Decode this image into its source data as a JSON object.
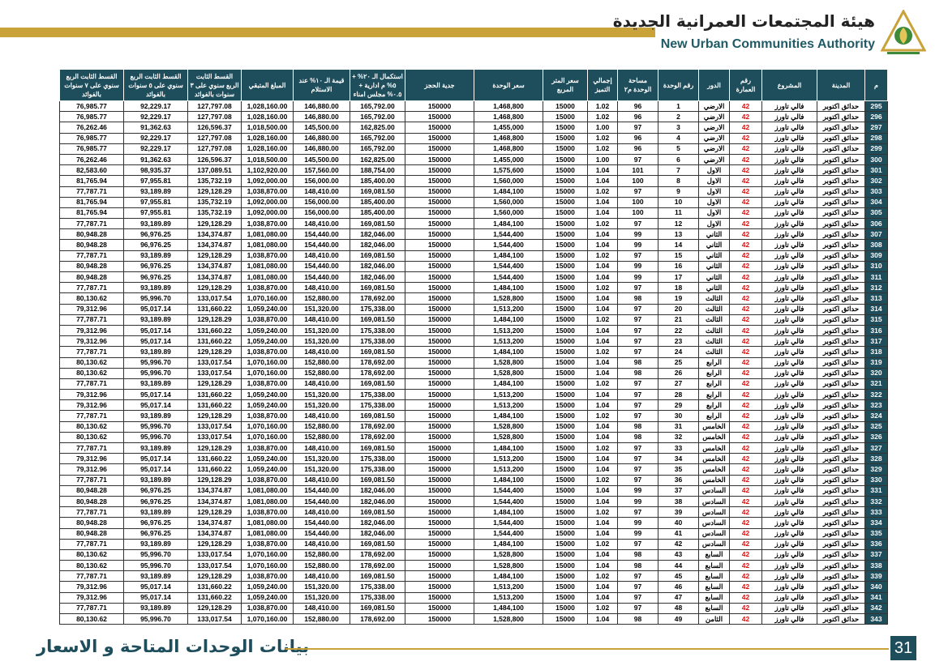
{
  "header": {
    "title_ar": "هيئة المجتمعات العمرانية الجديدة",
    "title_en": "New Urban Communities Authority"
  },
  "table": {
    "columns": [
      "م",
      "المدينة",
      "المشروع",
      "رقم العمارة",
      "الدور",
      "رقم الوحدة",
      "مساحة الوحدة م٢",
      "إجمالي التميز",
      "سعر المتر المربع",
      "سعر الوحدة",
      "جدية الحجز",
      "استكمال الـ ٢٠% + ٥% م ادارية + ٠.٥% مجلس امناء",
      "قيمة الـ ١٠% عند الاستلام",
      "المبلغ المتبقي",
      "القسط الثابت الربع سنوي على ٣ سنوات بالفوائد",
      "القسط الثابت الربع سنوي على ٥ سنوات بالفوائد",
      "القسط الثابت الربع سنوي على ٧ سنوات بالفوائد"
    ],
    "rows": [
      [
        "295",
        "حدائق اكتوبر",
        "فالي تاورز",
        "42",
        "الارضي",
        "1",
        "96",
        "1.02",
        "15000",
        "1,468,800",
        "150000",
        "165,792.00",
        "146,880.00",
        "1,028,160.00",
        "127,797.08",
        "92,229.17",
        "76,985.77"
      ],
      [
        "296",
        "حدائق اكتوبر",
        "فالي تاورز",
        "42",
        "الارضي",
        "2",
        "96",
        "1.02",
        "15000",
        "1,468,800",
        "150000",
        "165,792.00",
        "146,880.00",
        "1,028,160.00",
        "127,797.08",
        "92,229.17",
        "76,985.77"
      ],
      [
        "297",
        "حدائق اكتوبر",
        "فالي تاورز",
        "42",
        "الارضي",
        "3",
        "97",
        "1.00",
        "15000",
        "1,455,000",
        "150000",
        "162,825.00",
        "145,500.00",
        "1,018,500.00",
        "126,596.37",
        "91,362.63",
        "76,262.46"
      ],
      [
        "298",
        "حدائق اكتوبر",
        "فالي تاورز",
        "42",
        "الارضي",
        "4",
        "96",
        "1.02",
        "15000",
        "1,468,800",
        "150000",
        "165,792.00",
        "146,880.00",
        "1,028,160.00",
        "127,797.08",
        "92,229.17",
        "76,985.77"
      ],
      [
        "299",
        "حدائق اكتوبر",
        "فالي تاورز",
        "42",
        "الارضي",
        "5",
        "96",
        "1.02",
        "15000",
        "1,468,800",
        "150000",
        "165,792.00",
        "146,880.00",
        "1,028,160.00",
        "127,797.08",
        "92,229.17",
        "76,985.77"
      ],
      [
        "300",
        "حدائق اكتوبر",
        "فالي تاورز",
        "42",
        "الارضي",
        "6",
        "97",
        "1.00",
        "15000",
        "1,455,000",
        "150000",
        "162,825.00",
        "145,500.00",
        "1,018,500.00",
        "126,596.37",
        "91,362.63",
        "76,262.46"
      ],
      [
        "301",
        "حدائق اكتوبر",
        "فالي تاورز",
        "42",
        "الاول",
        "7",
        "101",
        "1.04",
        "15000",
        "1,575,600",
        "150000",
        "188,754.00",
        "157,560.00",
        "1,102,920.00",
        "137,089.51",
        "98,935.37",
        "82,583.60"
      ],
      [
        "302",
        "حدائق اكتوبر",
        "فالي تاورز",
        "42",
        "الاول",
        "8",
        "100",
        "1.04",
        "15000",
        "1,560,000",
        "150000",
        "185,400.00",
        "156,000.00",
        "1,092,000.00",
        "135,732.19",
        "97,955.81",
        "81,765.94"
      ],
      [
        "303",
        "حدائق اكتوبر",
        "فالي تاورز",
        "42",
        "الاول",
        "9",
        "97",
        "1.02",
        "15000",
        "1,484,100",
        "150000",
        "169,081.50",
        "148,410.00",
        "1,038,870.00",
        "129,128.29",
        "93,189.89",
        "77,787.71"
      ],
      [
        "304",
        "حدائق اكتوبر",
        "فالي تاورز",
        "42",
        "الاول",
        "10",
        "100",
        "1.04",
        "15000",
        "1,560,000",
        "150000",
        "185,400.00",
        "156,000.00",
        "1,092,000.00",
        "135,732.19",
        "97,955.81",
        "81,765.94"
      ],
      [
        "305",
        "حدائق اكتوبر",
        "فالي تاورز",
        "42",
        "الاول",
        "11",
        "100",
        "1.04",
        "15000",
        "1,560,000",
        "150000",
        "185,400.00",
        "156,000.00",
        "1,092,000.00",
        "135,732.19",
        "97,955.81",
        "81,765.94"
      ],
      [
        "306",
        "حدائق اكتوبر",
        "فالي تاورز",
        "42",
        "الاول",
        "12",
        "97",
        "1.02",
        "15000",
        "1,484,100",
        "150000",
        "169,081.50",
        "148,410.00",
        "1,038,870.00",
        "129,128.29",
        "93,189.89",
        "77,787.71"
      ],
      [
        "307",
        "حدائق اكتوبر",
        "فالي تاورز",
        "42",
        "الثاني",
        "13",
        "99",
        "1.04",
        "15000",
        "1,544,400",
        "150000",
        "182,046.00",
        "154,440.00",
        "1,081,080.00",
        "134,374.87",
        "96,976.25",
        "80,948.28"
      ],
      [
        "308",
        "حدائق اكتوبر",
        "فالي تاورز",
        "42",
        "الثاني",
        "14",
        "99",
        "1.04",
        "15000",
        "1,544,400",
        "150000",
        "182,046.00",
        "154,440.00",
        "1,081,080.00",
        "134,374.87",
        "96,976.25",
        "80,948.28"
      ],
      [
        "309",
        "حدائق اكتوبر",
        "فالي تاورز",
        "42",
        "الثاني",
        "15",
        "97",
        "1.02",
        "15000",
        "1,484,100",
        "150000",
        "169,081.50",
        "148,410.00",
        "1,038,870.00",
        "129,128.29",
        "93,189.89",
        "77,787.71"
      ],
      [
        "310",
        "حدائق اكتوبر",
        "فالي تاورز",
        "42",
        "الثاني",
        "16",
        "99",
        "1.04",
        "15000",
        "1,544,400",
        "150000",
        "182,046.00",
        "154,440.00",
        "1,081,080.00",
        "134,374.87",
        "96,976.25",
        "80,948.28"
      ],
      [
        "311",
        "حدائق اكتوبر",
        "فالي تاورز",
        "42",
        "الثاني",
        "17",
        "99",
        "1.04",
        "15000",
        "1,544,400",
        "150000",
        "182,046.00",
        "154,440.00",
        "1,081,080.00",
        "134,374.87",
        "96,976.25",
        "80,948.28"
      ],
      [
        "312",
        "حدائق اكتوبر",
        "فالي تاورز",
        "42",
        "الثاني",
        "18",
        "97",
        "1.02",
        "15000",
        "1,484,100",
        "150000",
        "169,081.50",
        "148,410.00",
        "1,038,870.00",
        "129,128.29",
        "93,189.89",
        "77,787.71"
      ],
      [
        "313",
        "حدائق اكتوبر",
        "فالي تاورز",
        "42",
        "الثالث",
        "19",
        "98",
        "1.04",
        "15000",
        "1,528,800",
        "150000",
        "178,692.00",
        "152,880.00",
        "1,070,160.00",
        "133,017.54",
        "95,996.70",
        "80,130.62"
      ],
      [
        "314",
        "حدائق اكتوبر",
        "فالي تاورز",
        "42",
        "الثالث",
        "20",
        "97",
        "1.04",
        "15000",
        "1,513,200",
        "150000",
        "175,338.00",
        "151,320.00",
        "1,059,240.00",
        "131,660.22",
        "95,017.14",
        "79,312.96"
      ],
      [
        "315",
        "حدائق اكتوبر",
        "فالي تاورز",
        "42",
        "الثالث",
        "21",
        "97",
        "1.02",
        "15000",
        "1,484,100",
        "150000",
        "169,081.50",
        "148,410.00",
        "1,038,870.00",
        "129,128.29",
        "93,189.89",
        "77,787.71"
      ],
      [
        "316",
        "حدائق اكتوبر",
        "فالي تاورز",
        "42",
        "الثالث",
        "22",
        "97",
        "1.04",
        "15000",
        "1,513,200",
        "150000",
        "175,338.00",
        "151,320.00",
        "1,059,240.00",
        "131,660.22",
        "95,017.14",
        "79,312.96"
      ],
      [
        "317",
        "حدائق اكتوبر",
        "فالي تاورز",
        "42",
        "الثالث",
        "23",
        "97",
        "1.04",
        "15000",
        "1,513,200",
        "150000",
        "175,338.00",
        "151,320.00",
        "1,059,240.00",
        "131,660.22",
        "95,017.14",
        "79,312.96"
      ],
      [
        "318",
        "حدائق اكتوبر",
        "فالي تاورز",
        "42",
        "الثالث",
        "24",
        "97",
        "1.02",
        "15000",
        "1,484,100",
        "150000",
        "169,081.50",
        "148,410.00",
        "1,038,870.00",
        "129,128.29",
        "93,189.89",
        "77,787.71"
      ],
      [
        "319",
        "حدائق اكتوبر",
        "فالي تاورز",
        "42",
        "الرابع",
        "25",
        "98",
        "1.04",
        "15000",
        "1,528,800",
        "150000",
        "178,692.00",
        "152,880.00",
        "1,070,160.00",
        "133,017.54",
        "95,996.70",
        "80,130.62"
      ],
      [
        "320",
        "حدائق اكتوبر",
        "فالي تاورز",
        "42",
        "الرابع",
        "26",
        "98",
        "1.04",
        "15000",
        "1,528,800",
        "150000",
        "178,692.00",
        "152,880.00",
        "1,070,160.00",
        "133,017.54",
        "95,996.70",
        "80,130.62"
      ],
      [
        "321",
        "حدائق اكتوبر",
        "فالي تاورز",
        "42",
        "الرابع",
        "27",
        "97",
        "1.02",
        "15000",
        "1,484,100",
        "150000",
        "169,081.50",
        "148,410.00",
        "1,038,870.00",
        "129,128.29",
        "93,189.89",
        "77,787.71"
      ],
      [
        "322",
        "حدائق اكتوبر",
        "فالي تاورز",
        "42",
        "الرابع",
        "28",
        "97",
        "1.04",
        "15000",
        "1,513,200",
        "150000",
        "175,338.00",
        "151,320.00",
        "1,059,240.00",
        "131,660.22",
        "95,017.14",
        "79,312.96"
      ],
      [
        "323",
        "حدائق اكتوبر",
        "فالي تاورز",
        "42",
        "الرابع",
        "29",
        "97",
        "1.04",
        "15000",
        "1,513,200",
        "150000",
        "175,338.00",
        "151,320.00",
        "1,059,240.00",
        "131,660.22",
        "95,017.14",
        "79,312.96"
      ],
      [
        "324",
        "حدائق اكتوبر",
        "فالي تاورز",
        "42",
        "الرابع",
        "30",
        "97",
        "1.02",
        "15000",
        "1,484,100",
        "150000",
        "169,081.50",
        "148,410.00",
        "1,038,870.00",
        "129,128.29",
        "93,189.89",
        "77,787.71"
      ],
      [
        "325",
        "حدائق اكتوبر",
        "فالي تاورز",
        "42",
        "الخامس",
        "31",
        "98",
        "1.04",
        "15000",
        "1,528,800",
        "150000",
        "178,692.00",
        "152,880.00",
        "1,070,160.00",
        "133,017.54",
        "95,996.70",
        "80,130.62"
      ],
      [
        "326",
        "حدائق اكتوبر",
        "فالي تاورز",
        "42",
        "الخامس",
        "32",
        "98",
        "1.04",
        "15000",
        "1,528,800",
        "150000",
        "178,692.00",
        "152,880.00",
        "1,070,160.00",
        "133,017.54",
        "95,996.70",
        "80,130.62"
      ],
      [
        "327",
        "حدائق اكتوبر",
        "فالي تاورز",
        "42",
        "الخامس",
        "33",
        "97",
        "1.02",
        "15000",
        "1,484,100",
        "150000",
        "169,081.50",
        "148,410.00",
        "1,038,870.00",
        "129,128.29",
        "93,189.89",
        "77,787.71"
      ],
      [
        "328",
        "حدائق اكتوبر",
        "فالي تاورز",
        "42",
        "الخامس",
        "34",
        "97",
        "1.04",
        "15000",
        "1,513,200",
        "150000",
        "175,338.00",
        "151,320.00",
        "1,059,240.00",
        "131,660.22",
        "95,017.14",
        "79,312.96"
      ],
      [
        "329",
        "حدائق اكتوبر",
        "فالي تاورز",
        "42",
        "الخامس",
        "35",
        "97",
        "1.04",
        "15000",
        "1,513,200",
        "150000",
        "175,338.00",
        "151,320.00",
        "1,059,240.00",
        "131,660.22",
        "95,017.14",
        "79,312.96"
      ],
      [
        "330",
        "حدائق اكتوبر",
        "فالي تاورز",
        "42",
        "الخامس",
        "36",
        "97",
        "1.02",
        "15000",
        "1,484,100",
        "150000",
        "169,081.50",
        "148,410.00",
        "1,038,870.00",
        "129,128.29",
        "93,189.89",
        "77,787.71"
      ],
      [
        "331",
        "حدائق اكتوبر",
        "فالي تاورز",
        "42",
        "السادس",
        "37",
        "99",
        "1.04",
        "15000",
        "1,544,400",
        "150000",
        "182,046.00",
        "154,440.00",
        "1,081,080.00",
        "134,374.87",
        "96,976.25",
        "80,948.28"
      ],
      [
        "332",
        "حدائق اكتوبر",
        "فالي تاورز",
        "42",
        "السادس",
        "38",
        "99",
        "1.04",
        "15000",
        "1,544,400",
        "150000",
        "182,046.00",
        "154,440.00",
        "1,081,080.00",
        "134,374.87",
        "96,976.25",
        "80,948.28"
      ],
      [
        "333",
        "حدائق اكتوبر",
        "فالي تاورز",
        "42",
        "السادس",
        "39",
        "97",
        "1.02",
        "15000",
        "1,484,100",
        "150000",
        "169,081.50",
        "148,410.00",
        "1,038,870.00",
        "129,128.29",
        "93,189.89",
        "77,787.71"
      ],
      [
        "334",
        "حدائق اكتوبر",
        "فالي تاورز",
        "42",
        "السادس",
        "40",
        "99",
        "1.04",
        "15000",
        "1,544,400",
        "150000",
        "182,046.00",
        "154,440.00",
        "1,081,080.00",
        "134,374.87",
        "96,976.25",
        "80,948.28"
      ],
      [
        "335",
        "حدائق اكتوبر",
        "فالي تاورز",
        "42",
        "السادس",
        "41",
        "99",
        "1.04",
        "15000",
        "1,544,400",
        "150000",
        "182,046.00",
        "154,440.00",
        "1,081,080.00",
        "134,374.87",
        "96,976.25",
        "80,948.28"
      ],
      [
        "336",
        "حدائق اكتوبر",
        "فالي تاورز",
        "42",
        "السادس",
        "42",
        "97",
        "1.02",
        "15000",
        "1,484,100",
        "150000",
        "169,081.50",
        "148,410.00",
        "1,038,870.00",
        "129,128.29",
        "93,189.89",
        "77,787.71"
      ],
      [
        "337",
        "حدائق اكتوبر",
        "فالي تاورز",
        "42",
        "السابع",
        "43",
        "98",
        "1.04",
        "15000",
        "1,528,800",
        "150000",
        "178,692.00",
        "152,880.00",
        "1,070,160.00",
        "133,017.54",
        "95,996.70",
        "80,130.62"
      ],
      [
        "338",
        "حدائق اكتوبر",
        "فالي تاورز",
        "42",
        "السابع",
        "44",
        "98",
        "1.04",
        "15000",
        "1,528,800",
        "150000",
        "178,692.00",
        "152,880.00",
        "1,070,160.00",
        "133,017.54",
        "95,996.70",
        "80,130.62"
      ],
      [
        "339",
        "حدائق اكتوبر",
        "فالي تاورز",
        "42",
        "السابع",
        "45",
        "97",
        "1.02",
        "15000",
        "1,484,100",
        "150000",
        "169,081.50",
        "148,410.00",
        "1,038,870.00",
        "129,128.29",
        "93,189.89",
        "77,787.71"
      ],
      [
        "340",
        "حدائق اكتوبر",
        "فالي تاورز",
        "42",
        "السابع",
        "46",
        "97",
        "1.04",
        "15000",
        "1,513,200",
        "150000",
        "175,338.00",
        "151,320.00",
        "1,059,240.00",
        "131,660.22",
        "95,017.14",
        "79,312.96"
      ],
      [
        "341",
        "حدائق اكتوبر",
        "فالي تاورز",
        "42",
        "السابع",
        "47",
        "97",
        "1.04",
        "15000",
        "1,513,200",
        "150000",
        "175,338.00",
        "151,320.00",
        "1,059,240.00",
        "131,660.22",
        "95,017.14",
        "79,312.96"
      ],
      [
        "342",
        "حدائق اكتوبر",
        "فالي تاورز",
        "42",
        "السابع",
        "48",
        "97",
        "1.02",
        "15000",
        "1,484,100",
        "150000",
        "169,081.50",
        "148,410.00",
        "1,038,870.00",
        "129,128.29",
        "93,189.89",
        "77,787.71"
      ],
      [
        "343",
        "حدائق اكتوبر",
        "فالي تاورز",
        "42",
        "الثامن",
        "49",
        "98",
        "1.04",
        "15000",
        "1,528,800",
        "150000",
        "178,692.00",
        "152,880.00",
        "1,070,160.00",
        "133,017.54",
        "95,996.70",
        "80,130.62"
      ]
    ]
  },
  "footer": {
    "title": "بيانات الوحدات المتاحة و الاسعار",
    "page": "31"
  }
}
